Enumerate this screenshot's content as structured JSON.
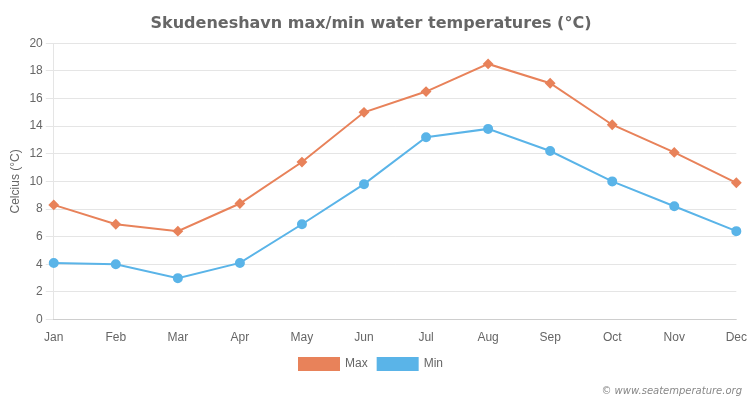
{
  "chart_data": {
    "type": "line",
    "title": "Skudeneshavn max/min water temperatures (°C)",
    "ylabel": "Celcius (°C)",
    "categories": [
      "Jan",
      "Feb",
      "Mar",
      "Apr",
      "May",
      "Jun",
      "Jul",
      "Aug",
      "Sep",
      "Oct",
      "Nov",
      "Dec"
    ],
    "series": [
      {
        "name": "Max",
        "color": "#e8825a",
        "marker": "diamond",
        "values": [
          8.3,
          6.9,
          6.4,
          8.4,
          11.4,
          15.0,
          16.5,
          18.5,
          17.1,
          14.1,
          12.1,
          9.9
        ]
      },
      {
        "name": "Min",
        "color": "#5ab4e8",
        "marker": "circle",
        "values": [
          4.1,
          4.0,
          3.0,
          4.1,
          6.9,
          9.8,
          13.2,
          13.8,
          12.2,
          10.0,
          8.2,
          6.4
        ]
      }
    ],
    "ylim": [
      0,
      20
    ],
    "yticks": [
      0,
      2,
      4,
      6,
      8,
      10,
      12,
      14,
      16,
      18,
      20
    ],
    "grid": true,
    "legend": "bottom",
    "annotations": [
      "© www.seatemperature.org"
    ]
  }
}
